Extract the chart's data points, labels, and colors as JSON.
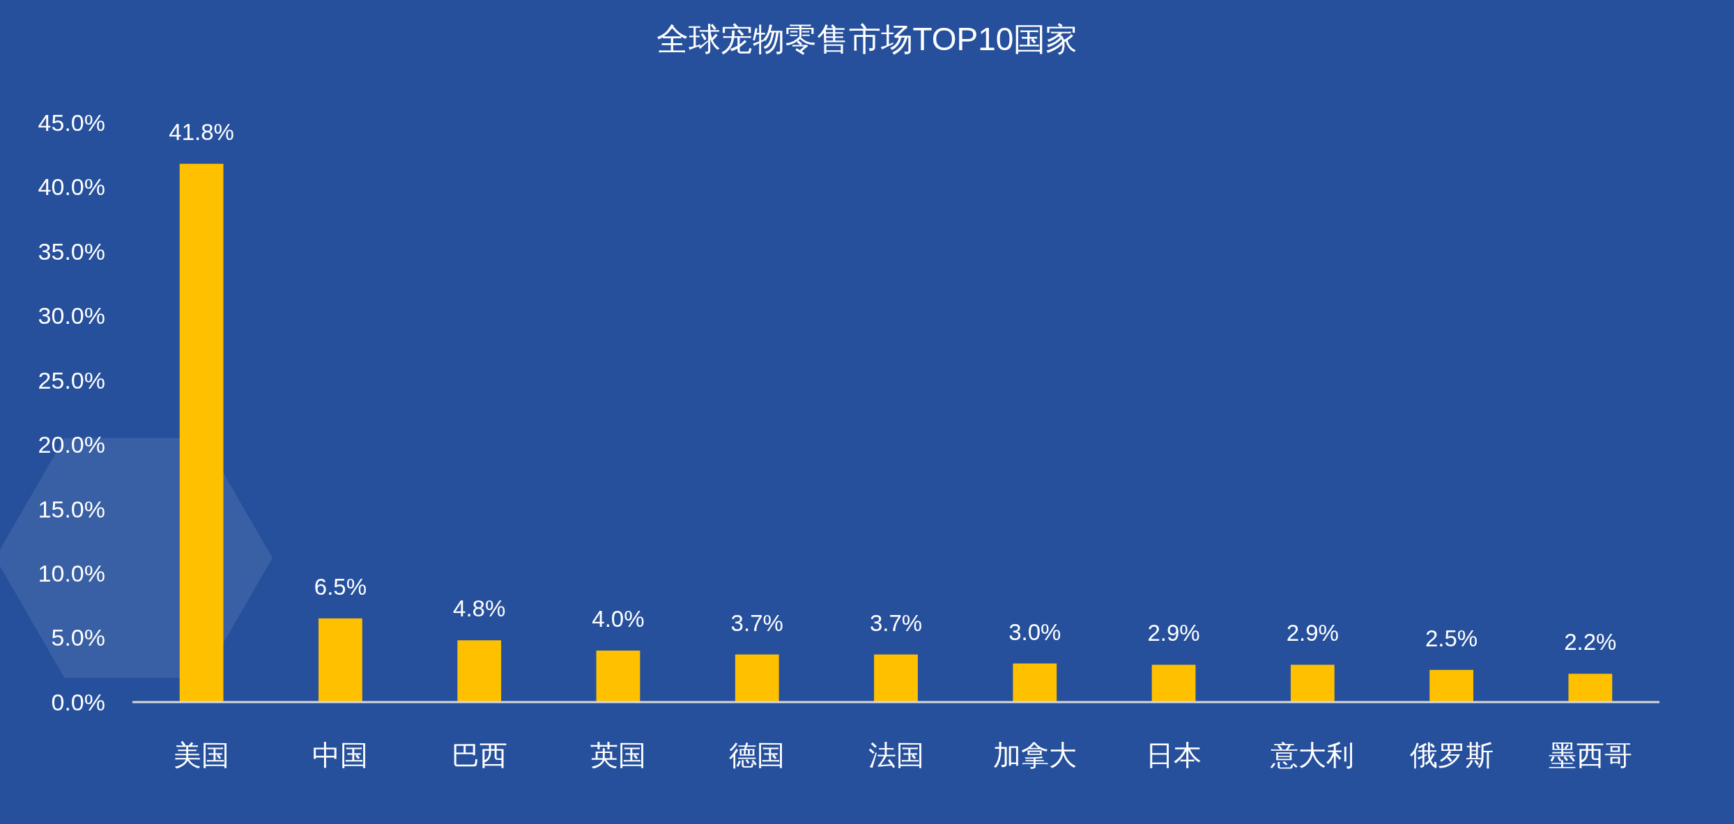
{
  "chart_data": {
    "type": "bar",
    "title": "全球宠物零售市场TOP10国家",
    "categories": [
      "美国",
      "中国",
      "巴西",
      "英国",
      "德国",
      "法国",
      "加拿大",
      "日本",
      "意大利",
      "俄罗斯",
      "墨西哥"
    ],
    "values": [
      41.8,
      6.5,
      4.8,
      4.0,
      3.7,
      3.7,
      3.0,
      2.9,
      2.9,
      2.5,
      2.2
    ],
    "value_labels": [
      "41.8%",
      "6.5%",
      "4.8%",
      "4.0%",
      "3.7%",
      "3.7%",
      "3.0%",
      "2.9%",
      "2.9%",
      "2.5%",
      "2.2%"
    ],
    "color": "#ffc000",
    "ylim": [
      0,
      45
    ],
    "yticks": [
      {
        "value": 0,
        "label": "0.0%"
      },
      {
        "value": 5,
        "label": "5.0%"
      },
      {
        "value": 10,
        "label": "10.0%"
      },
      {
        "value": 15,
        "label": "15.0%"
      },
      {
        "value": 20,
        "label": "20.0%"
      },
      {
        "value": 25,
        "label": "25.0%"
      },
      {
        "value": 30,
        "label": "30.0%"
      },
      {
        "value": 35,
        "label": "35.0%"
      },
      {
        "value": 40,
        "label": "40.0%"
      },
      {
        "value": 45,
        "label": "45.0%"
      }
    ],
    "grid": false
  }
}
